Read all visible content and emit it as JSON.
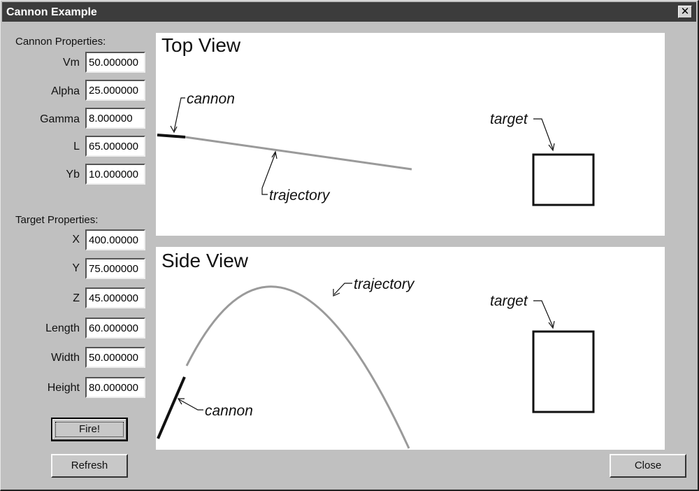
{
  "window": {
    "title": "Cannon Example",
    "close_glyph": "✕"
  },
  "cannon_properties": {
    "heading": "Cannon Properties:",
    "fields": [
      {
        "label": "Vm",
        "value": "50.000000"
      },
      {
        "label": "Alpha",
        "value": "25.000000"
      },
      {
        "label": "Gamma",
        "value": "8.000000"
      },
      {
        "label": "L",
        "value": "65.000000"
      },
      {
        "label": "Yb",
        "value": "10.000000"
      }
    ]
  },
  "target_properties": {
    "heading": "Target Properties:",
    "fields": [
      {
        "label": "X",
        "value": "400.00000"
      },
      {
        "label": "Y",
        "value": "75.000000"
      },
      {
        "label": "Z",
        "value": "45.000000"
      },
      {
        "label": "Length",
        "value": "60.000000"
      },
      {
        "label": "Width",
        "value": "50.000000"
      },
      {
        "label": "Height",
        "value": "80.000000"
      }
    ]
  },
  "buttons": {
    "fire": "Fire!",
    "refresh": "Refresh",
    "close": "Close"
  },
  "top_view": {
    "title": "Top View",
    "labels": {
      "cannon": "cannon",
      "trajectory": "trajectory",
      "target": "target"
    }
  },
  "side_view": {
    "title": "Side View",
    "labels": {
      "cannon": "cannon",
      "trajectory": "trajectory",
      "target": "target"
    }
  },
  "colors": {
    "trajectory": "#9a9a9a",
    "cannon": "#111111",
    "panel": "#c0c0c0"
  }
}
